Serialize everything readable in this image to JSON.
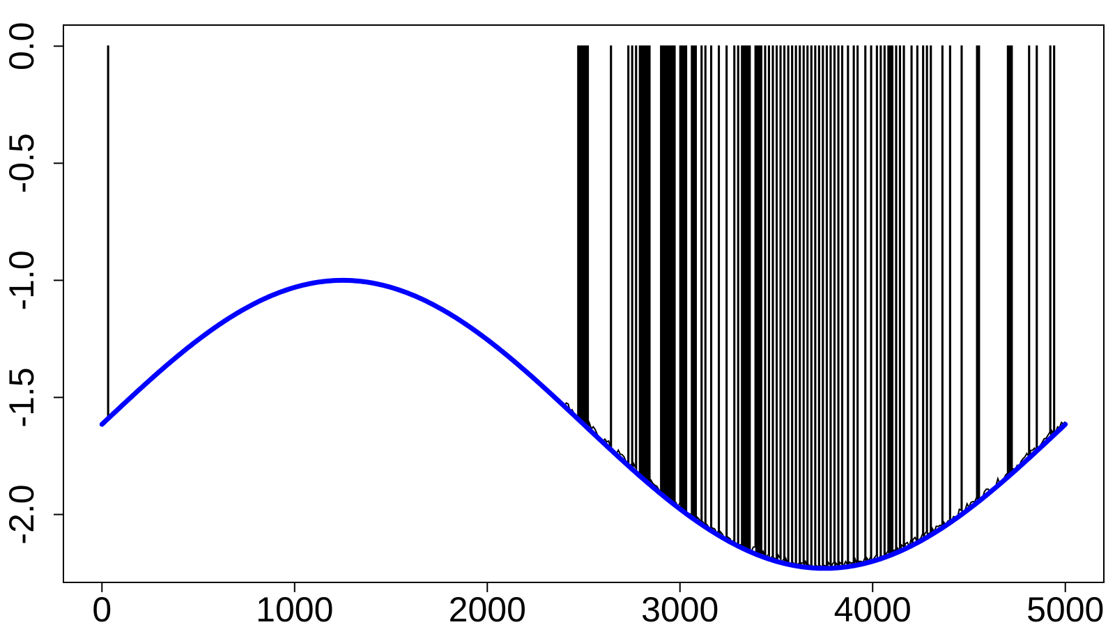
{
  "chart_data": {
    "type": "line",
    "title": "",
    "xlabel": "",
    "ylabel": "",
    "xlim": [
      -200,
      5200
    ],
    "ylim": [
      -2.29,
      0.09
    ],
    "grid": false,
    "x_ticks": [
      0,
      1000,
      2000,
      3000,
      4000,
      5000
    ],
    "x_tick_labels": [
      "0",
      "1000",
      "2000",
      "3000",
      "4000",
      "5000"
    ],
    "y_ticks": [
      -2.0,
      -1.5,
      -1.0,
      -0.5,
      0.0
    ],
    "y_tick_labels": [
      "-2.0",
      "-1.5",
      "-1.0",
      "-0.5",
      "0.0"
    ],
    "series": [
      {
        "role": "sampled",
        "color": "#000000",
        "x_range": [
          0,
          5000
        ],
        "baseline": "follows fitted curve",
        "spike_level": 0.0,
        "spike_x": [
          30,
          2470,
          2480,
          2490,
          2500,
          2510,
          2520,
          2640,
          2730,
          2750,
          2770,
          2790,
          2800,
          2810,
          2820,
          2830,
          2840,
          2900,
          2910,
          2920,
          2930,
          2940,
          2950,
          2960,
          2970,
          3000,
          3010,
          3020,
          3030,
          3060,
          3070,
          3080,
          3110,
          3130,
          3160,
          3200,
          3240,
          3280,
          3300,
          3320,
          3330,
          3340,
          3350,
          3360,
          3390,
          3400,
          3410,
          3420,
          3440,
          3460,
          3480,
          3500,
          3520,
          3540,
          3560,
          3580,
          3600,
          3620,
          3640,
          3660,
          3680,
          3700,
          3720,
          3740,
          3760,
          3780,
          3800,
          3820,
          3840,
          3870,
          3900,
          3920,
          3960,
          3990,
          4020,
          4040,
          4060,
          4080,
          4090,
          4100,
          4120,
          4140,
          4160,
          4200,
          4230,
          4260,
          4280,
          4300,
          4360,
          4400,
          4460,
          4540,
          4550,
          4700,
          4710,
          4720,
          4810,
          4850,
          4920,
          4940
        ]
      },
      {
        "role": "fitted",
        "color": "#0000FF",
        "x_range": [
          0,
          5000
        ],
        "formula": "y = -1.615 + 0.615 * sin(2*pi*x/5000)",
        "min": {
          "x": 3750,
          "y": -2.23
        },
        "max": {
          "x": 1250,
          "y": -1.0
        },
        "endpoints_y": [
          -1.615,
          -1.615
        ]
      }
    ]
  }
}
